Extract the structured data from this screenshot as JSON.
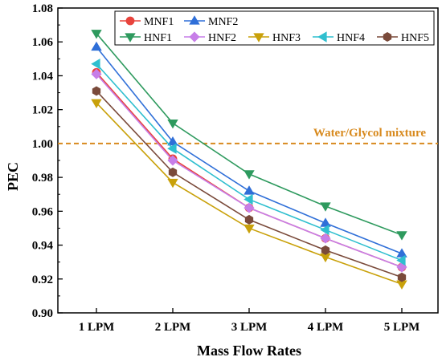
{
  "chart_data": {
    "type": "line",
    "xlabel": "Mass Flow Rates",
    "ylabel": "PEC",
    "categories": [
      "1 LPM",
      "2 LPM",
      "3 LPM",
      "4 LPM",
      "5 LPM"
    ],
    "ylim": [
      0.9,
      1.08
    ],
    "yticks": [
      "0.90",
      "0.92",
      "0.94",
      "0.96",
      "0.98",
      "1.00",
      "1.02",
      "1.04",
      "1.06",
      "1.08"
    ],
    "grid": false,
    "legend_placement": "top-center",
    "series": [
      {
        "name": "MNF1",
        "color": "#e8433c",
        "marker": "circle",
        "values": [
          1.042,
          0.991,
          0.962,
          0.944,
          0.927
        ]
      },
      {
        "name": "MNF2",
        "color": "#2f6fd8",
        "marker": "triangle-up",
        "values": [
          1.057,
          1.001,
          0.972,
          0.953,
          0.935
        ]
      },
      {
        "name": "HNF1",
        "color": "#2e9a5e",
        "marker": "triangle-down",
        "values": [
          1.065,
          1.012,
          0.982,
          0.963,
          0.946
        ]
      },
      {
        "name": "HNF2",
        "color": "#c77ee8",
        "marker": "diamond",
        "values": [
          1.041,
          0.99,
          0.962,
          0.944,
          0.927
        ]
      },
      {
        "name": "HNF3",
        "color": "#c9a10a",
        "marker": "triangle-down",
        "values": [
          1.024,
          0.977,
          0.95,
          0.933,
          0.917
        ]
      },
      {
        "name": "HNF4",
        "color": "#2fbfcf",
        "marker": "triangle-left",
        "values": [
          1.047,
          0.997,
          0.967,
          0.949,
          0.931
        ]
      },
      {
        "name": "HNF5",
        "color": "#7a4a3a",
        "marker": "hexagon",
        "values": [
          1.031,
          0.983,
          0.955,
          0.937,
          0.921
        ]
      }
    ],
    "reference_line": {
      "value": 1.0,
      "label": "Water/Glycol mixture",
      "color": "#d88a1e",
      "style": "dashed"
    }
  }
}
